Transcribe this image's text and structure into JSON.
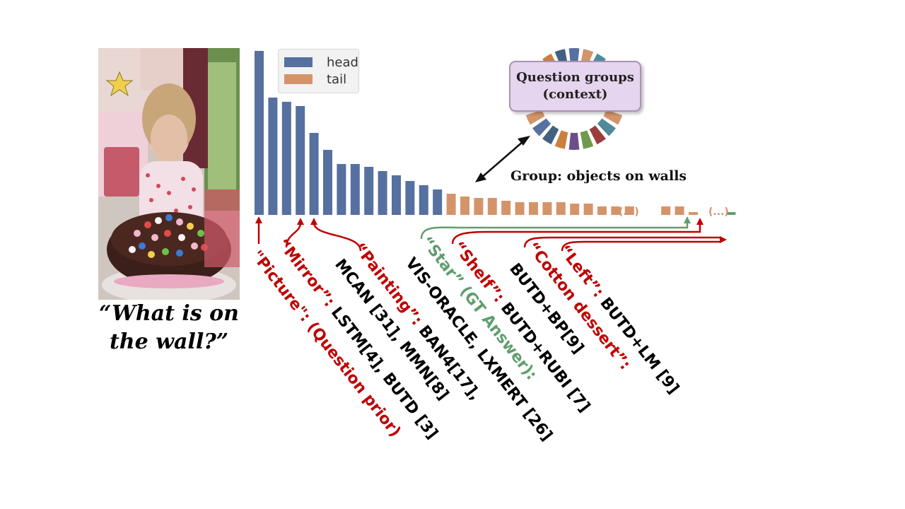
{
  "question": {
    "line1": "“What is on",
    "line2": "the wall?”"
  },
  "legend": [
    {
      "label": "head",
      "color": "#56709f"
    },
    {
      "label": "tail",
      "color": "#d4946a"
    }
  ],
  "chart_data": {
    "type": "bar",
    "series": [
      {
        "name": "head",
        "values": [
          232,
          166,
          160,
          154,
          116,
          92,
          72,
          72,
          68,
          62,
          56,
          48,
          42,
          36
        ]
      },
      {
        "name": "tail",
        "values": [
          30,
          26,
          24,
          24,
          20,
          18,
          18,
          18,
          18,
          16,
          16,
          12,
          12,
          12,
          12,
          12,
          4,
          4
        ]
      }
    ],
    "gap_after_tail_index": [
      13,
      16
    ]
  },
  "context_box": {
    "line1": "Question groups",
    "line2": "(context)"
  },
  "group_label": "Group: objects on walls",
  "ellipsis": [
    "(...)",
    "(...)"
  ],
  "ring_colors": [
    "#56709f",
    "#d4946a",
    "#4e8a99",
    "#9b3d3d",
    "#6f9a4c",
    "#6b4f8a",
    "#cc7f3e",
    "#42607f"
  ],
  "annotations": [
    {
      "quoted": "\"Picture\": ",
      "rest": "(Question prior)",
      "quote_color": "#c00000",
      "rest_color": "#c00000"
    },
    {
      "quoted": "“Mirror”: ",
      "rest": "LSTM[4], BUTD [3]",
      "quote_color": "#c00000",
      "rest_color": "#000000"
    },
    {
      "quoted": "",
      "rest": "MCAN [31], MMN[8]",
      "quote_color": "#000000",
      "rest_color": "#000000"
    },
    {
      "quoted": "“Painting”: ",
      "rest": "BAN4[17],",
      "quote_color": "#c00000",
      "rest_color": "#000000"
    },
    {
      "quoted": "",
      "rest": "VIS-ORACLE, LXMERT [26]",
      "quote_color": "#000000",
      "rest_color": "#000000"
    },
    {
      "quoted": "“Star” (GT Answer):",
      "rest": "",
      "quote_color": "#5f9e6e",
      "rest_color": "#5f9e6e"
    },
    {
      "quoted": "“Shelf”: ",
      "rest": "BUTD+RUBI [7]",
      "quote_color": "#c00000",
      "rest_color": "#000000"
    },
    {
      "quoted": "",
      "rest": "BUTD+BP[9]",
      "quote_color": "#000000",
      "rest_color": "#000000"
    },
    {
      "quoted": "“Cotton dessert”:",
      "rest": "",
      "quote_color": "#c00000",
      "rest_color": "#c00000"
    },
    {
      "quoted": "“Left”: ",
      "rest": "BUTD+LM [9]",
      "quote_color": "#c00000",
      "rest_color": "#000000"
    }
  ]
}
